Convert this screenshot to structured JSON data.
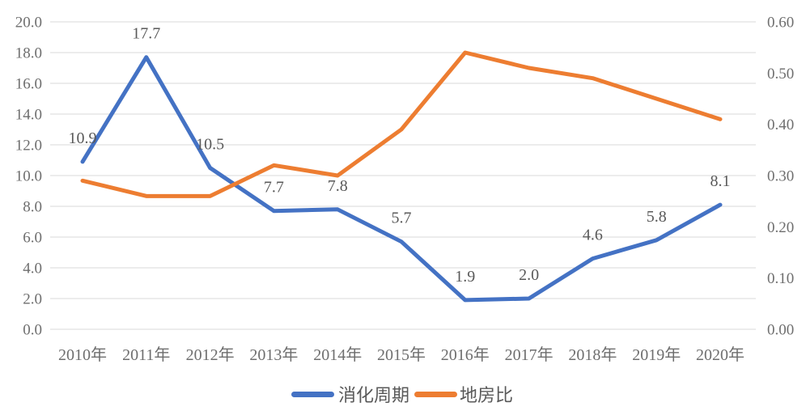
{
  "chart_data": {
    "type": "line",
    "title": "",
    "categories": [
      "2010年",
      "2011年",
      "2012年",
      "2013年",
      "2014年",
      "2015年",
      "2016年",
      "2017年",
      "2018年",
      "2019年",
      "2020年"
    ],
    "series": [
      {
        "name": "消化周期",
        "axis": "left",
        "color": "#4472C4",
        "values": [
          10.9,
          17.7,
          10.5,
          7.7,
          7.8,
          5.7,
          1.9,
          2.0,
          4.6,
          5.8,
          8.1
        ],
        "show_data_labels": true,
        "data_labels": [
          "10.9",
          "17.7",
          "10.5",
          "7.7",
          "7.8",
          "5.7",
          "1.9",
          "2.0",
          "4.6",
          "5.8",
          "8.1"
        ]
      },
      {
        "name": "地房比",
        "axis": "right",
        "color": "#ED7D31",
        "values": [
          0.29,
          0.26,
          0.26,
          0.32,
          0.3,
          0.39,
          0.54,
          0.51,
          0.49,
          0.45,
          0.41
        ],
        "show_data_labels": false,
        "data_labels": null
      }
    ],
    "axes": {
      "left": {
        "min": 0,
        "max": 20,
        "step": 2,
        "tick_labels": [
          "20.0",
          "18.0",
          "16.0",
          "14.0",
          "12.0",
          "10.0",
          "8.0",
          "6.0",
          "4.0",
          "2.0",
          "0.0"
        ]
      },
      "right": {
        "min": 0,
        "max": 0.6,
        "step": 0.1,
        "tick_labels": [
          "0.60",
          "0.50",
          "0.40",
          "0.30",
          "0.20",
          "0.10",
          "0.00"
        ]
      }
    },
    "grid": true,
    "legend": {
      "position": "bottom",
      "items": [
        {
          "label": "消化周期",
          "color": "#4472C4"
        },
        {
          "label": "地房比",
          "color": "#ED7D31"
        }
      ]
    },
    "style": {
      "grid_color": "#D9D9D9",
      "axis_text_color": "#6E6E6E",
      "data_label_color": "#595959",
      "background": "#FFFFFF",
      "line_width": 5
    }
  }
}
